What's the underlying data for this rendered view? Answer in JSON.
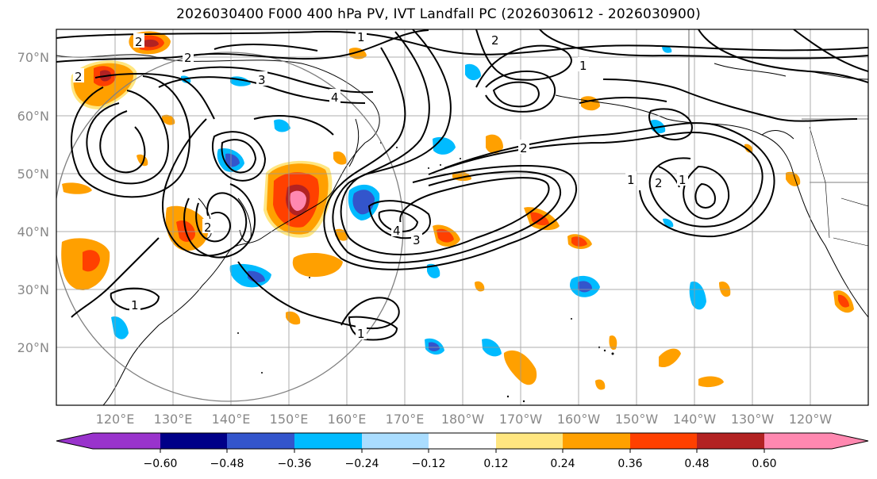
{
  "title": "2026030400 F000 400 hPa PV, IVT Landfall PC (2026030612 - 2026030900)",
  "lat_labels": [
    "70°N",
    "60°N",
    "50°N",
    "40°N",
    "30°N",
    "20°N"
  ],
  "lon_labels": [
    "120°E",
    "130°E",
    "140°E",
    "150°E",
    "160°E",
    "170°E",
    "180°W",
    "170°W",
    "160°W",
    "150°W",
    "140°W",
    "130°W",
    "120°W"
  ],
  "colorbar": {
    "tick_labels": [
      "−0.60",
      "−0.48",
      "−0.36",
      "−0.24",
      "−0.12",
      "0.12",
      "0.24",
      "0.36",
      "0.48",
      "0.60"
    ],
    "colors": [
      "#9933cc",
      "#000088",
      "#3355cc",
      "#00bbff",
      "#aaddff",
      "#ffffff",
      "#ffe680",
      "#ffa000",
      "#ff4000",
      "#b22222",
      "#ff88b0",
      "#ff88b0"
    ]
  },
  "contour_labels": [
    "1",
    "2",
    "3",
    "4"
  ],
  "colors": {
    "pv_pos_low": "#ffa000",
    "pv_pos_mid": "#ff4000",
    "pv_pos_high": "#b22222",
    "pv_pos_max": "#ff88b0",
    "pv_neg_low": "#00bbff",
    "pv_neg_mid": "#3355cc",
    "pv_neg_max": "#9933cc",
    "halo": "#ffe680"
  }
}
